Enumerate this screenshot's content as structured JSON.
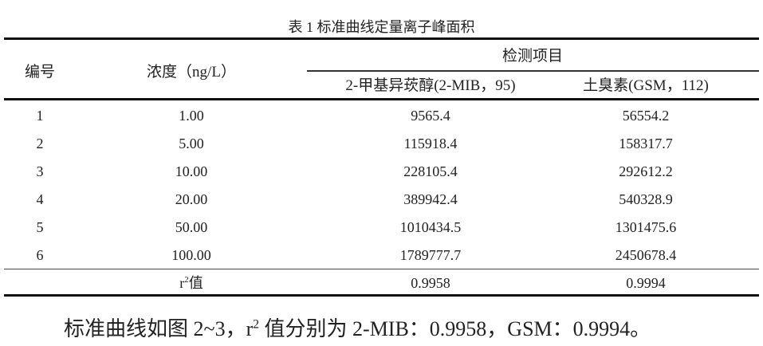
{
  "table": {
    "title": "表 1  标准曲线定量离子峰面积",
    "headers": {
      "index": "编号",
      "concentration": "浓度（ng/L）",
      "group": "检测项目",
      "mib": "2-甲基异莰醇(2-MIB，95)",
      "gsm": "土臭素(GSM，112)"
    },
    "rows": [
      {
        "index": "1",
        "concentration": "1.00",
        "mib": "9565.4",
        "gsm": "56554.2"
      },
      {
        "index": "2",
        "concentration": "5.00",
        "mib": "115918.4",
        "gsm": "158317.7"
      },
      {
        "index": "3",
        "concentration": "10.00",
        "mib": "228105.4",
        "gsm": "292612.2"
      },
      {
        "index": "4",
        "concentration": "20.00",
        "mib": "389942.4",
        "gsm": "540328.9"
      },
      {
        "index": "5",
        "concentration": "50.00",
        "mib": "1010434.5",
        "gsm": "1301475.6"
      },
      {
        "index": "6",
        "concentration": "100.00",
        "mib": "1789777.7",
        "gsm": "2450678.4"
      }
    ],
    "r2_row": {
      "label_r": "r",
      "label_sup": "2",
      "label_rest": "值",
      "mib": "0.9958",
      "gsm": "0.9994"
    }
  },
  "sentence": {
    "part1": "标准曲线如图 2~3，r",
    "sup": "2",
    "part2": " 值分别为 2-MIB：0.9958，GSM：0.9994。"
  }
}
